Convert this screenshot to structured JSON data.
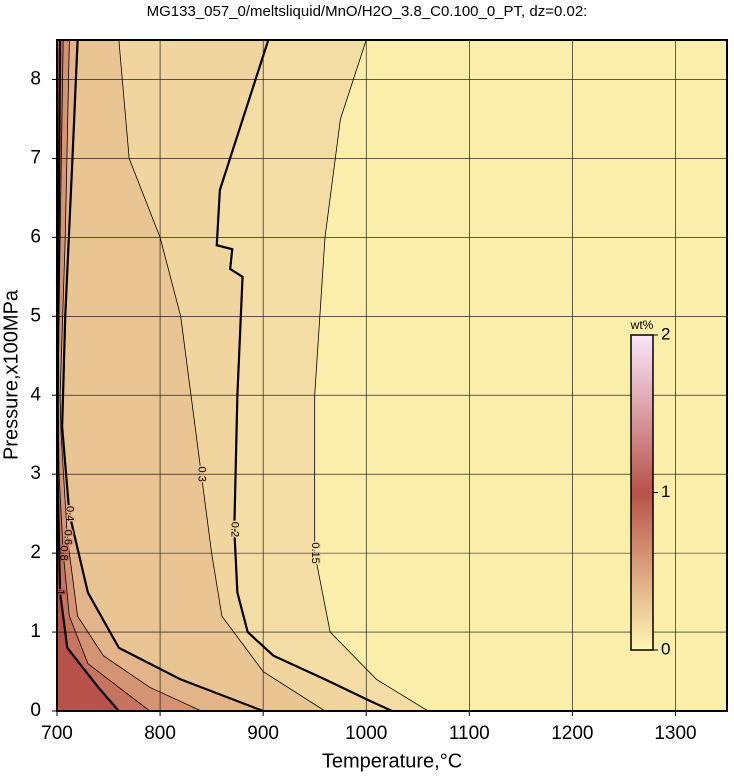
{
  "chart_data": {
    "type": "contour",
    "title": "MG133_057_0/meltsliquid/MnO/H2O_3.8_C0.100_0_PT, dz=0.02:",
    "x_label": "Temperature,°C",
    "y_label": "Pressure,x100MPa",
    "xlim": [
      700,
      1350
    ],
    "ylim": [
      0,
      8.5
    ],
    "xticks": [
      700,
      800,
      900,
      1000,
      1100,
      1200,
      1300
    ],
    "yticks": [
      0,
      1,
      2,
      3,
      4,
      5,
      6,
      7,
      8
    ],
    "grid": true,
    "background": "#fbeeab",
    "colorscale": [
      [
        0,
        "#fff6b4"
      ],
      [
        1,
        "#b8524a"
      ],
      [
        2,
        "#fbe6fb"
      ]
    ],
    "colorbar": {
      "label": "wt%",
      "lim": [
        0,
        2
      ],
      "ticks": [
        0,
        1,
        2
      ]
    },
    "contours": [
      {
        "level": 0.15,
        "bold": false,
        "x": [
          1000,
          975,
          960,
          950,
          950,
          965,
          1010,
          1060
        ],
        "y": [
          8.5,
          7.5,
          6,
          4,
          2,
          1,
          0.4,
          0
        ]
      },
      {
        "level": 0.2,
        "bold": true,
        "x": [
          905,
          858,
          855,
          870,
          868,
          880,
          875,
          872,
          875,
          885,
          910,
          960,
          1000,
          1025
        ],
        "y": [
          8.5,
          6.6,
          5.9,
          5.85,
          5.6,
          5.5,
          4.0,
          2.3,
          1.5,
          1.0,
          0.7,
          0.4,
          0.15,
          0
        ]
      },
      {
        "level": 0.3,
        "bold": false,
        "x": [
          760,
          770,
          800,
          820,
          840,
          850,
          860,
          900,
          960
        ],
        "y": [
          8.5,
          7,
          6,
          5,
          3,
          2,
          1.2,
          0.5,
          0
        ]
      },
      {
        "level": 0.4,
        "bold": true,
        "x": [
          720,
          715,
          708,
          705,
          712,
          730,
          760,
          820,
          900
        ],
        "y": [
          8.5,
          7,
          5,
          3.6,
          2.5,
          1.5,
          0.8,
          0.4,
          0
        ]
      },
      {
        "level": 0.6,
        "bold": false,
        "x": [
          712,
          708,
          703,
          704,
          710,
          720,
          745,
          790,
          840
        ],
        "y": [
          8.5,
          6,
          4,
          3.5,
          2.2,
          1.2,
          0.7,
          0.3,
          0
        ]
      },
      {
        "level": 0.8,
        "bold": false,
        "x": [
          706,
          703,
          701,
          702,
          706,
          712,
          730,
          770,
          790
        ],
        "y": [
          8.5,
          6,
          4,
          3,
          2,
          1.2,
          0.6,
          0.2,
          0
        ]
      },
      {
        "level": 1,
        "bold": true,
        "x": [
          703,
          701,
          700.5,
          703,
          710,
          740,
          760
        ],
        "y": [
          8.5,
          5,
          3,
          1.5,
          0.8,
          0.3,
          0
        ]
      }
    ]
  }
}
